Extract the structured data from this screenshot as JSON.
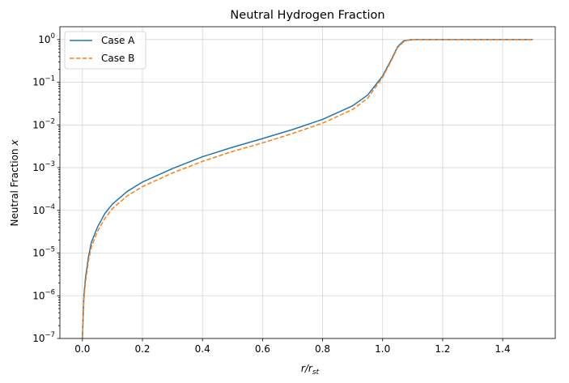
{
  "chart_data": {
    "type": "line",
    "title": "Neutral Hydrogen Fraction",
    "xlabel_main": "r/r",
    "xlabel_sub": "st",
    "ylabel_main": "Neutral Fraction ",
    "ylabel_var": "x",
    "xlim": [
      -0.075,
      1.575
    ],
    "ylim_log10": [
      -7,
      0.3
    ],
    "y_scale": "log",
    "grid": true,
    "legend_position": "upper-left",
    "x_ticks": [
      {
        "value": 0.0,
        "label": "0.0"
      },
      {
        "value": 0.2,
        "label": "0.2"
      },
      {
        "value": 0.4,
        "label": "0.4"
      },
      {
        "value": 0.6,
        "label": "0.6"
      },
      {
        "value": 0.8,
        "label": "0.8"
      },
      {
        "value": 1.0,
        "label": "1.0"
      },
      {
        "value": 1.2,
        "label": "1.2"
      },
      {
        "value": 1.4,
        "label": "1.4"
      }
    ],
    "y_ticks": [
      {
        "exp": -7,
        "base": "10",
        "sup": "−7"
      },
      {
        "exp": -6,
        "base": "10",
        "sup": "−6"
      },
      {
        "exp": -5,
        "base": "10",
        "sup": "−5"
      },
      {
        "exp": -4,
        "base": "10",
        "sup": "−4"
      },
      {
        "exp": -3,
        "base": "10",
        "sup": "−3"
      },
      {
        "exp": -2,
        "base": "10",
        "sup": "−2"
      },
      {
        "exp": -1,
        "base": "10",
        "sup": "−1"
      },
      {
        "exp": 0,
        "base": "10",
        "sup": "0"
      }
    ],
    "series": [
      {
        "name": "Case A",
        "color": "#1f77b4",
        "dash": "solid",
        "x": [
          0.0,
          0.005,
          0.01,
          0.02,
          0.03,
          0.05,
          0.075,
          0.1,
          0.15,
          0.2,
          0.3,
          0.4,
          0.5,
          0.6,
          0.7,
          0.8,
          0.9,
          0.95,
          1.0,
          1.03,
          1.05,
          1.07,
          1.1,
          1.2,
          1.3,
          1.4,
          1.5
        ],
        "y": [
          1e-07,
          1e-06,
          2.5e-06,
          8e-06,
          1.8e-05,
          4e-05,
          8.5e-05,
          0.00014,
          0.00028,
          0.00046,
          0.00095,
          0.0018,
          0.003,
          0.0048,
          0.0078,
          0.0135,
          0.028,
          0.05,
          0.14,
          0.35,
          0.68,
          0.93,
          1.0,
          1.0,
          1.0,
          1.0,
          1.0
        ]
      },
      {
        "name": "Case B",
        "color": "#ff7f0e",
        "dash": "dashed",
        "x": [
          0.0,
          0.005,
          0.01,
          0.02,
          0.03,
          0.05,
          0.075,
          0.1,
          0.15,
          0.2,
          0.3,
          0.4,
          0.5,
          0.6,
          0.7,
          0.8,
          0.9,
          0.95,
          1.0,
          1.03,
          1.05,
          1.075,
          1.1,
          1.2,
          1.3,
          1.4,
          1.5
        ],
        "y": [
          1e-07,
          8e-07,
          2e-06,
          6.5e-06,
          1.4e-05,
          3.2e-05,
          6.5e-05,
          0.00011,
          0.00022,
          0.00036,
          0.00075,
          0.0014,
          0.0024,
          0.0038,
          0.0063,
          0.011,
          0.023,
          0.042,
          0.13,
          0.33,
          0.65,
          0.95,
          1.0,
          1.0,
          1.0,
          1.0,
          1.0
        ]
      }
    ]
  }
}
